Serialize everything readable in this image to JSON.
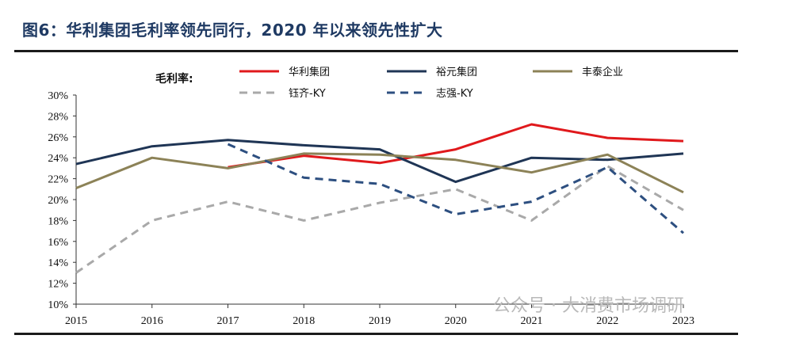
{
  "title": "图6：华利集团毛利率领先同行，2020 年以来领先性扩大",
  "watermark": "公众号 · 大消费市场调研",
  "chart_data": {
    "type": "line",
    "ylabel": "毛利率:",
    "categories": [
      "2015",
      "2016",
      "2017",
      "2018",
      "2019",
      "2020",
      "2021",
      "2022",
      "2023"
    ],
    "ylim": [
      10,
      30
    ],
    "yticks": [
      10,
      12,
      14,
      16,
      18,
      20,
      22,
      24,
      26,
      28,
      30
    ],
    "ytick_suffix": "%",
    "grid": false,
    "legend_position": "top",
    "series": [
      {
        "name": "华利集团",
        "color": "#e0191c",
        "dash": false,
        "values": [
          null,
          null,
          23.1,
          24.2,
          23.5,
          24.8,
          27.2,
          25.9,
          25.6
        ]
      },
      {
        "name": "裕元集团",
        "color": "#1f3555",
        "dash": false,
        "values": [
          23.4,
          25.1,
          25.7,
          25.2,
          24.8,
          21.7,
          24.0,
          23.8,
          24.4
        ]
      },
      {
        "name": "丰泰企业",
        "color": "#8c8257",
        "dash": false,
        "values": [
          21.1,
          24.0,
          23.0,
          24.4,
          24.3,
          23.8,
          22.6,
          24.3,
          20.7
        ]
      },
      {
        "name": "钰齐-KY",
        "color": "#a9a9a9",
        "dash": true,
        "values": [
          13.0,
          18.0,
          19.8,
          18.0,
          19.7,
          21.0,
          18.0,
          23.2,
          19.0
        ]
      },
      {
        "name": "志强-KY",
        "color": "#2d4f80",
        "dash": true,
        "values": [
          null,
          null,
          25.3,
          22.1,
          21.5,
          18.6,
          19.8,
          23.1,
          16.8
        ]
      }
    ]
  }
}
